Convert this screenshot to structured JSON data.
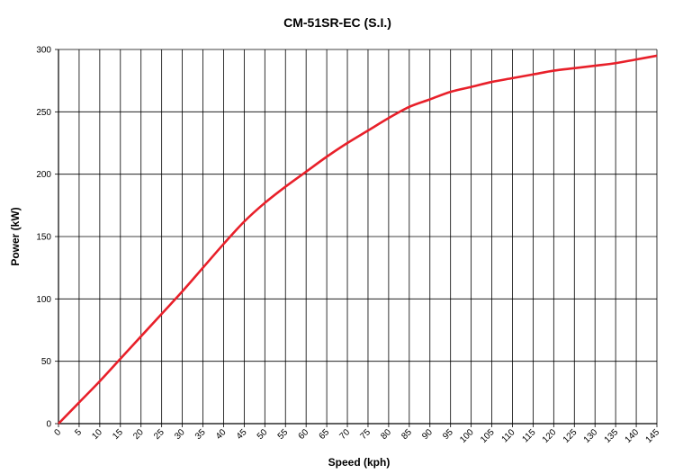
{
  "chart_data": {
    "type": "line",
    "title": "CM-51SR-EC (S.I.)",
    "xlabel": "Speed (kph)",
    "ylabel": "Power (kW)",
    "xlim": [
      0,
      145
    ],
    "ylim": [
      0,
      300
    ],
    "x_ticks": [
      0,
      5,
      10,
      15,
      20,
      25,
      30,
      35,
      40,
      45,
      50,
      55,
      60,
      65,
      70,
      75,
      80,
      85,
      90,
      95,
      100,
      105,
      110,
      115,
      120,
      125,
      130,
      135,
      140,
      145
    ],
    "y_ticks": [
      0,
      50,
      100,
      150,
      200,
      250,
      300
    ],
    "grid": true,
    "line_color": "#e8202a",
    "series": [
      {
        "x": [
          0,
          5,
          10,
          15,
          20,
          25,
          30,
          35,
          40,
          45,
          50,
          55,
          60,
          65,
          70,
          75,
          80,
          85,
          90,
          95,
          100,
          105,
          110,
          115,
          120,
          125,
          130,
          135,
          140,
          145
        ],
        "values": [
          0,
          17,
          34,
          52,
          70,
          88,
          106,
          125,
          144,
          162,
          177,
          190,
          202,
          214,
          225,
          235,
          245,
          254,
          260,
          266,
          270,
          274,
          277,
          280,
          283,
          285,
          287,
          289,
          292,
          295
        ]
      }
    ]
  }
}
